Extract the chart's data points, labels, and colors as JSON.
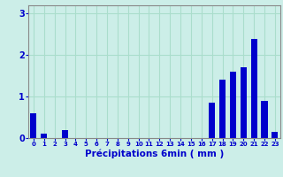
{
  "hours": [
    0,
    1,
    2,
    3,
    4,
    5,
    6,
    7,
    8,
    9,
    10,
    11,
    12,
    13,
    14,
    15,
    16,
    17,
    18,
    19,
    20,
    21,
    22,
    23
  ],
  "values": [
    0.6,
    0.1,
    0.0,
    0.2,
    0.0,
    0.0,
    0.0,
    0.0,
    0.0,
    0.0,
    0.0,
    0.0,
    0.0,
    0.0,
    0.0,
    0.0,
    0.0,
    0.85,
    1.4,
    1.6,
    1.7,
    2.4,
    0.9,
    0.15
  ],
  "bar_color": "#0000cc",
  "bg_color": "#cceee8",
  "grid_color": "#aaddcc",
  "axis_color": "#888888",
  "text_color": "#0000cc",
  "xlabel": "Précipitations 6min ( mm )",
  "xlabel_fontsize": 7.5,
  "yticks": [
    0,
    1,
    2,
    3
  ],
  "ylim": [
    0,
    3.2
  ],
  "xlim": [
    -0.5,
    23.5
  ]
}
